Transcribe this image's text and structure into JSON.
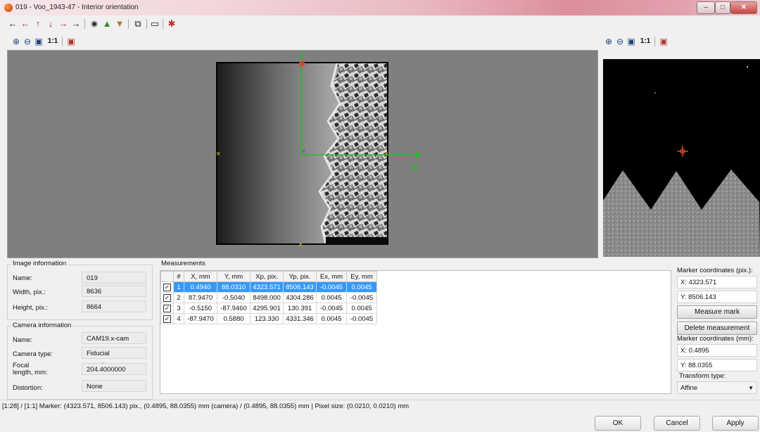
{
  "window": {
    "title": "019 - Voo_1943-47 - Interior orientation",
    "min": "–",
    "max": "□",
    "close": "✕"
  },
  "toolbar_icons": [
    "arrow-left-icon",
    "arrow-left-red-icon",
    "arrow-up-red-icon",
    "arrow-down-red-icon",
    "arrow-right-red-icon",
    "arrow-right-icon",
    "camera-icon",
    "export-icon",
    "import-icon",
    "copy-icon",
    "delete-icon",
    "settings-icon"
  ],
  "zoom_bar": {
    "one_to_one": "1:1"
  },
  "main_view": {
    "axis_label": "X"
  },
  "image_info": {
    "title": "Image information",
    "name_label": "Name:",
    "name_value": "019",
    "width_label": "Width, pix.:",
    "width_value": "8636",
    "height_label": "Height, pix.:",
    "height_value": "8664"
  },
  "camera_info": {
    "title": "Camera information",
    "name_label": "Name:",
    "name_value": "CAM19.x-cam",
    "type_label": "Camera type:",
    "type_value": "Fiducial coordinates",
    "focal_label_1": "Focal",
    "focal_label_2": "length, mm:",
    "focal_value": "204.4000000",
    "distortion_label": "Distortion:",
    "distortion_value": "None"
  },
  "measurements": {
    "title": "Measurements",
    "columns": [
      "#",
      "X, mm",
      "Y, mm",
      "Xp, pix.",
      "Yp, pix.",
      "Ex, mm",
      "Ey, mm"
    ],
    "rows": [
      {
        "n": "1",
        "x": "0.4940",
        "y": "88.0310",
        "xp": "4323.571",
        "yp": "8506.143",
        "ex": "-0.0045",
        "ey": "0.0045",
        "checked": "✓"
      },
      {
        "n": "2",
        "x": "87.9470",
        "y": "-0.5040",
        "xp": "8498.000",
        "yp": "4304.286",
        "ex": "0.0045",
        "ey": "-0.0045",
        "checked": "✓"
      },
      {
        "n": "3",
        "x": "-0.5150",
        "y": "-87.9460",
        "xp": "4295.901",
        "yp": "130.391",
        "ex": "-0.0045",
        "ey": "0.0045",
        "checked": "✓"
      },
      {
        "n": "4",
        "x": "-87.9470",
        "y": "0.5880",
        "xp": "123.330",
        "yp": "4331.346",
        "ex": "0.0045",
        "ey": "-0.0045",
        "checked": "✓"
      }
    ]
  },
  "marker_pix": {
    "title": "Marker coordinates (pix.):",
    "x": "X:  4323.571",
    "y": "Y:  8506.143"
  },
  "measure_mark": "Measure mark",
  "delete_measurement": "Delete measurement",
  "marker_mm": {
    "title": "Marker coordinates (mm):",
    "x": "X:  0.4895",
    "y": "Y:  88.0355"
  },
  "transform": {
    "label": "Transform type:",
    "value": "Affine"
  },
  "status": "[1:28] / [1:1] Marker: (4323.571, 8506.143) pix., (0.4895, 88.0355) mm (camera) / (0.4895, 88.0355) mm | Pixel size: (0.0210, 0.0210) mm",
  "buttons": {
    "ok": "OK",
    "cancel": "Cancel",
    "apply": "Apply"
  }
}
